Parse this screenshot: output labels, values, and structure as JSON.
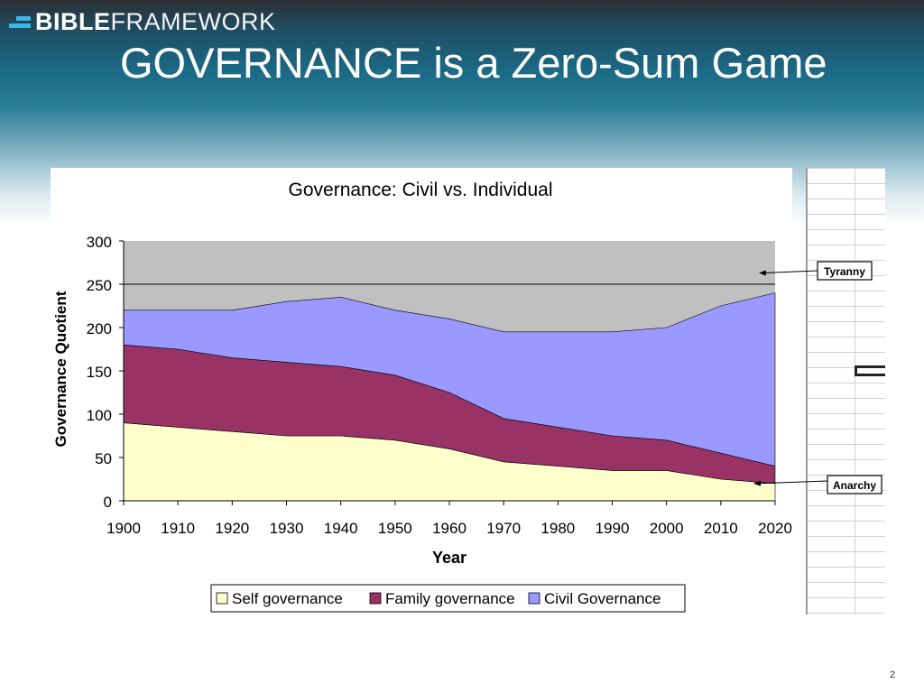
{
  "brand": {
    "logo_bold": "BIBLE",
    "logo_thin": "FRAMEWORK",
    "accent": "#3fb5e5"
  },
  "slide": {
    "title": "GOVERNANCE is a Zero-Sum Game",
    "page_number": "2"
  },
  "chart_data": {
    "type": "area",
    "stacked": true,
    "title": "Governance: Civil vs. Individual",
    "xlabel": "Year",
    "ylabel": "Governance Quotient",
    "x": [
      1900,
      1910,
      1920,
      1930,
      1940,
      1950,
      1960,
      1970,
      1980,
      1990,
      2000,
      2010,
      2020
    ],
    "xlim": [
      1900,
      2020
    ],
    "ylim": [
      0,
      300
    ],
    "yticks": [
      0,
      50,
      100,
      150,
      200,
      250,
      300
    ],
    "grid": "horizontal",
    "legend_position": "bottom",
    "series": [
      {
        "name": "Self governance",
        "color": "#ffffcc",
        "values": [
          90,
          85,
          80,
          75,
          75,
          70,
          60,
          45,
          40,
          35,
          35,
          25,
          20
        ]
      },
      {
        "name": "Family governance",
        "color": "#993366",
        "values": [
          90,
          90,
          85,
          85,
          80,
          75,
          65,
          50,
          45,
          40,
          35,
          30,
          20
        ]
      },
      {
        "name": "Civil Governance",
        "color": "#9999ff",
        "values": [
          40,
          45,
          55,
          70,
          80,
          75,
          85,
          100,
          110,
          120,
          130,
          170,
          200
        ]
      }
    ],
    "plot_background": "#c0c0c0",
    "annotations": [
      {
        "text": "Tyranny",
        "x": 2017,
        "y": 263
      },
      {
        "text": "Anarchy",
        "x": 2016,
        "y": 20
      }
    ]
  }
}
